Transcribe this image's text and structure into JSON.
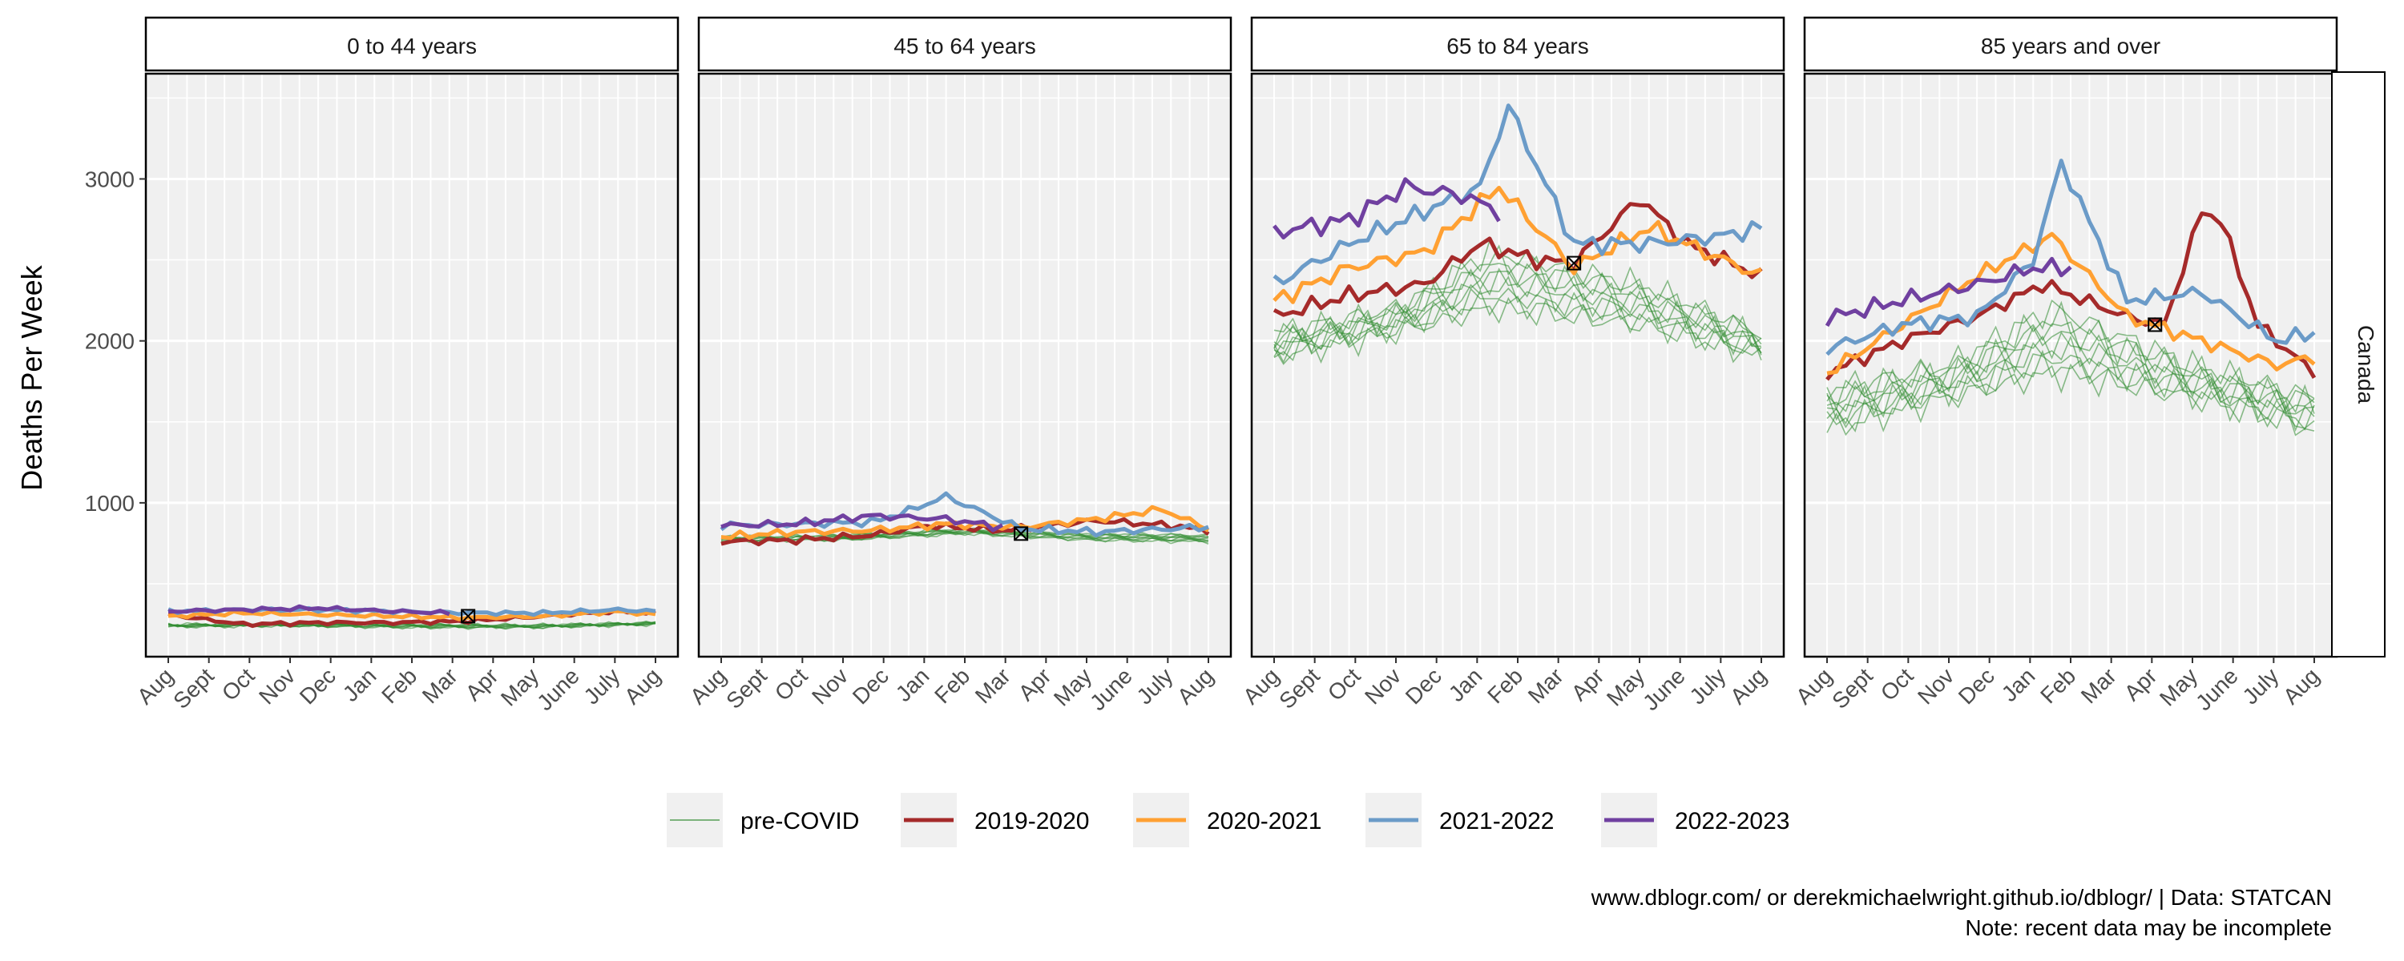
{
  "chart_data": {
    "type": "line",
    "ylabel": "Deaths Per Week",
    "y_ticks": [
      1000,
      2000,
      3000
    ],
    "ylim": [
      50,
      3650
    ],
    "x_ticks": [
      "Aug",
      "Sept",
      "Oct",
      "Nov",
      "Dec",
      "Jan",
      "Feb",
      "Mar",
      "Apr",
      "May",
      "June",
      "July",
      "Aug"
    ],
    "strip_right": "Canada",
    "colors": {
      "pre_covid": "#2e8b2e",
      "2019-2020": "#a52a2a",
      "2020-2021": "#ffa032",
      "2021-2022": "#6b9bc8",
      "2022-2023": "#7040a0"
    },
    "legend": {
      "position": "bottom",
      "items": [
        {
          "key": "pre_covid",
          "label": "pre-COVID"
        },
        {
          "key": "2019-2020",
          "label": "2019-2020"
        },
        {
          "key": "2020-2021",
          "label": "2020-2021"
        },
        {
          "key": "2021-2022",
          "label": "2021-2022"
        },
        {
          "key": "2022-2023",
          "label": "2022-2023"
        }
      ]
    },
    "caption": [
      "www.dblogr.com/ or derekmichaelwright.github.io/dblogr/ | Data: STATCAN",
      "Note: recent data may be incomplete"
    ],
    "panels": [
      {
        "title": "0 to 44 years",
        "marker_week": 32,
        "marker_value": 300,
        "pre_covid": {
          "anchor_weeks": [
            0,
            13,
            26,
            39,
            52
          ],
          "bands": [
            [
              235,
              250
            ],
            [
              240,
              250
            ],
            [
              230,
              250
            ],
            [
              230,
              245
            ],
            [
              250,
              260
            ]
          ],
          "count": 9
        },
        "seasons": {
          "2019-2020": {
            "anchor_weeks": [
              0,
              8,
              16,
              24,
              32,
              40,
              48,
              52
            ],
            "values": [
              310,
              250,
              260,
              260,
              270,
              300,
              330,
              320
            ]
          },
          "2020-2021": {
            "anchor_weeks": [
              0,
              8,
              16,
              24,
              32,
              40,
              48,
              52
            ],
            "values": [
              300,
              320,
              310,
              300,
              290,
              300,
              330,
              310
            ]
          },
          "2021-2022": {
            "anchor_weeks": [
              0,
              8,
              16,
              24,
              32,
              40,
              48,
              52
            ],
            "values": [
              330,
              340,
              340,
              330,
              320,
              320,
              340,
              330
            ]
          },
          "2022-2023": {
            "anchor_weeks": [
              0,
              8,
              16,
              24,
              30
            ],
            "values": [
              330,
              340,
              350,
              330,
              320
            ]
          }
        }
      },
      {
        "title": "45 to 64 years",
        "marker_week": 32,
        "marker_value": 810,
        "pre_covid": {
          "anchor_weeks": [
            0,
            13,
            26,
            39,
            52
          ],
          "bands": [
            [
              760,
              790
            ],
            [
              770,
              800
            ],
            [
              810,
              840
            ],
            [
              770,
              810
            ],
            [
              760,
              800
            ]
          ],
          "count": 9
        },
        "seasons": {
          "2019-2020": {
            "anchor_weeks": [
              0,
              8,
              16,
              22,
              30,
              40,
              48,
              52
            ],
            "values": [
              760,
              770,
              800,
              860,
              830,
              890,
              860,
              830
            ]
          },
          "2020-2021": {
            "anchor_weeks": [
              0,
              8,
              16,
              24,
              32,
              40,
              47,
              52
            ],
            "values": [
              790,
              820,
              830,
              870,
              850,
              900,
              960,
              840
            ]
          },
          "2021-2022": {
            "anchor_weeks": [
              0,
              8,
              16,
              20,
              24,
              32,
              40,
              48,
              52
            ],
            "values": [
              860,
              870,
              880,
              950,
              1040,
              840,
              820,
              840,
              850
            ]
          },
          "2022-2023": {
            "anchor_weeks": [
              0,
              8,
              16,
              24,
              30
            ],
            "values": [
              860,
              870,
              920,
              900,
              850
            ]
          }
        }
      },
      {
        "title": "65 to 84 years",
        "marker_week": 32,
        "marker_value": 2480,
        "pre_covid": {
          "anchor_weeks": [
            0,
            13,
            23,
            39,
            52
          ],
          "bands": [
            [
              1900,
              2050
            ],
            [
              2050,
              2200
            ],
            [
              2200,
              2550
            ],
            [
              2100,
              2350
            ],
            [
              1900,
              2050
            ]
          ],
          "count": 9
        },
        "seasons": {
          "2019-2020": {
            "anchor_weeks": [
              0,
              8,
              16,
              22,
              28,
              32,
              39,
              44,
              52
            ],
            "values": [
              2150,
              2280,
              2350,
              2600,
              2500,
              2480,
              2880,
              2600,
              2400
            ]
          },
          "2020-2021": {
            "anchor_weeks": [
              0,
              8,
              16,
              24,
              32,
              40,
              48,
              52
            ],
            "values": [
              2250,
              2450,
              2550,
              2950,
              2450,
              2700,
              2500,
              2400
            ]
          },
          "2021-2022": {
            "anchor_weeks": [
              0,
              8,
              16,
              22,
              25,
              32,
              40,
              48,
              52
            ],
            "values": [
              2350,
              2600,
              2800,
              2950,
              3450,
              2600,
              2600,
              2650,
              2700
            ]
          },
          "2022-2023": {
            "anchor_weeks": [
              0,
              8,
              14,
              20,
              24
            ],
            "values": [
              2670,
              2750,
              2950,
              2900,
              2800
            ]
          }
        }
      },
      {
        "title": "85 years and over",
        "marker_week": 35,
        "marker_value": 2100,
        "pre_covid": {
          "anchor_weeks": [
            0,
            13,
            24,
            39,
            52
          ],
          "bands": [
            [
              1450,
              1700
            ],
            [
              1650,
              1850
            ],
            [
              1800,
              2200
            ],
            [
              1650,
              1850
            ],
            [
              1450,
              1650
            ]
          ],
          "count": 9
        },
        "seasons": {
          "2019-2020": {
            "anchor_weeks": [
              0,
              8,
              16,
              23,
              32,
              36,
              40,
              42,
              46,
              52
            ],
            "values": [
              1800,
              2000,
              2150,
              2350,
              2150,
              2100,
              2800,
              2750,
              2100,
              1800
            ]
          },
          "2020-2021": {
            "anchor_weeks": [
              0,
              8,
              16,
              24,
              32,
              40,
              48,
              52
            ],
            "values": [
              1800,
              2100,
              2400,
              2650,
              2150,
              2000,
              1850,
              1900
            ]
          },
          "2021-2022": {
            "anchor_weeks": [
              0,
              8,
              16,
              22,
              25,
              32,
              40,
              48,
              52
            ],
            "values": [
              1950,
              2100,
              2150,
              2500,
              3100,
              2250,
              2300,
              2000,
              2050
            ]
          },
          "2022-2023": {
            "anchor_weeks": [
              0,
              8,
              16,
              22,
              26
            ],
            "values": [
              2140,
              2250,
              2350,
              2450,
              2450
            ]
          }
        }
      }
    ]
  }
}
